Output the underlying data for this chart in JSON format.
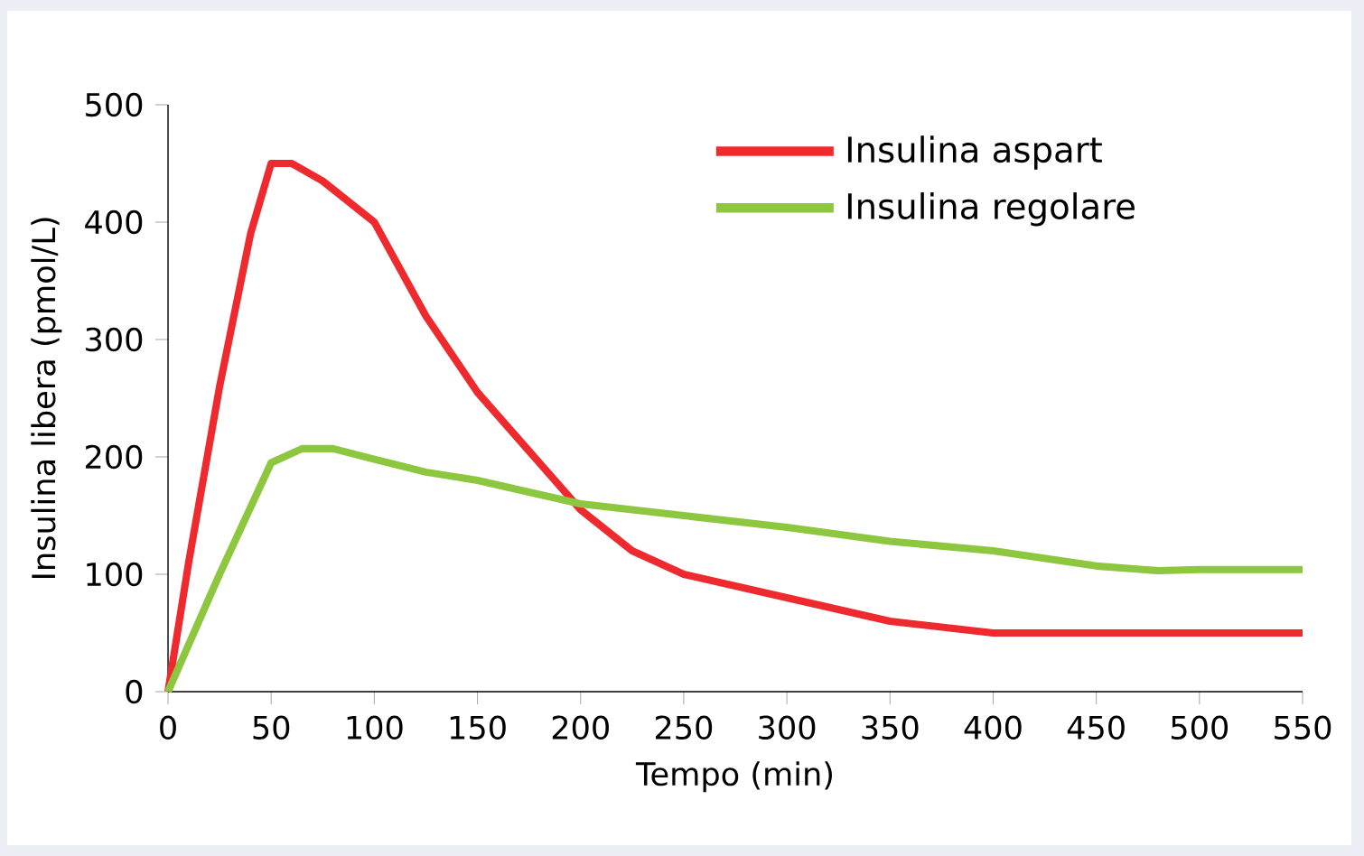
{
  "chart_data": {
    "type": "line",
    "xlabel": "Tempo (min)",
    "ylabel": "Insulina libera (pmol/L)",
    "xlim": [
      0,
      550
    ],
    "ylim": [
      0,
      500
    ],
    "xticks": [
      0,
      50,
      100,
      150,
      200,
      250,
      300,
      350,
      400,
      450,
      500,
      550
    ],
    "yticks": [
      0,
      100,
      200,
      300,
      400,
      500
    ],
    "grid": false,
    "legend": "top right",
    "marker": "none",
    "line_style": "solid",
    "series": [
      {
        "name": "Insulina aspart",
        "color": "#ee2a2f",
        "x": [
          0,
          10,
          25,
          40,
          50,
          60,
          75,
          100,
          125,
          150,
          175,
          200,
          225,
          250,
          300,
          350,
          400,
          450,
          500,
          550
        ],
        "values": [
          0,
          110,
          260,
          390,
          450,
          450,
          435,
          400,
          320,
          255,
          205,
          155,
          120,
          100,
          80,
          60,
          50,
          50,
          50,
          50
        ]
      },
      {
        "name": "Insulina regolare",
        "color": "#8dc63f",
        "x": [
          0,
          10,
          25,
          50,
          65,
          80,
          100,
          125,
          150,
          200,
          250,
          300,
          350,
          400,
          450,
          480,
          500,
          550
        ],
        "values": [
          0,
          40,
          100,
          195,
          207,
          207,
          198,
          187,
          180,
          160,
          150,
          140,
          128,
          120,
          107,
          103,
          104,
          104
        ]
      }
    ]
  }
}
